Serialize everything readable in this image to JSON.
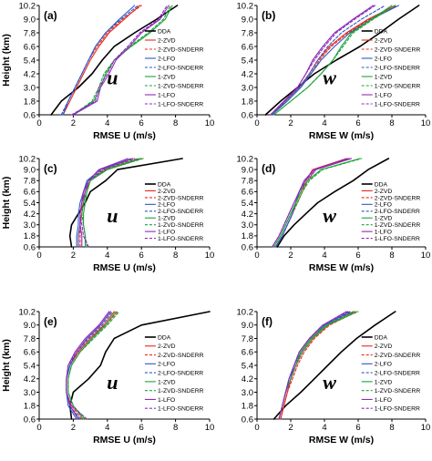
{
  "series_style": [
    {
      "name": "DDA",
      "color": "#000000",
      "dash": false,
      "width": 1.6
    },
    {
      "name": "2-ZVD",
      "color": "#e8291c",
      "dash": false,
      "width": 1.1
    },
    {
      "name": "2-ZVD-SNDERR",
      "color": "#e8291c",
      "dash": true,
      "width": 1.1
    },
    {
      "name": "2-LFO",
      "color": "#2a59c9",
      "dash": false,
      "width": 1.1
    },
    {
      "name": "2-LFO-SNDERR",
      "color": "#2a59c9",
      "dash": true,
      "width": 1.1
    },
    {
      "name": "1-ZVD",
      "color": "#1aa33b",
      "dash": false,
      "width": 1.1
    },
    {
      "name": "1-ZVD-SNDERR",
      "color": "#1aa33b",
      "dash": true,
      "width": 1.1
    },
    {
      "name": "1-LFO",
      "color": "#8f2ab8",
      "dash": false,
      "width": 1.1
    },
    {
      "name": "1-LFO-SNDERR",
      "color": "#8f2ab8",
      "dash": true,
      "width": 1.1
    }
  ],
  "y_ticks": [
    "0.6",
    "1.8",
    "3.0",
    "4.2",
    "5.4",
    "6.6",
    "7.8",
    "9.0",
    "10.2"
  ],
  "chart_data": [
    {
      "type": "line",
      "panel": "(a)",
      "variable": "u",
      "xlabel": "RMSE U (m/s)",
      "ylabel": "Height (km)",
      "xlim": [
        0,
        10
      ],
      "ylim": [
        0.6,
        10.2
      ],
      "x_ticks": [
        "0",
        "2",
        "4",
        "6",
        "8",
        "10"
      ],
      "legend": [
        "DDA",
        "2-ZVD",
        "2-ZVD-SNDERR",
        "2-LFO",
        "2-LFO-SNDERR",
        "1-ZVD",
        "1-ZVD-SNDERR",
        "1-LFO",
        "1-LFO-SNDERR"
      ],
      "legend_position": "right",
      "y": [
        0.6,
        1.8,
        3.0,
        4.2,
        5.4,
        6.6,
        7.8,
        9.0,
        10.2
      ],
      "series": [
        {
          "name": "DDA",
          "values": [
            0.7,
            1.3,
            2.3,
            3.1,
            3.7,
            4.4,
            5.6,
            6.9,
            8.1
          ]
        },
        {
          "name": "2-ZVD",
          "values": [
            1.4,
            1.8,
            2.2,
            2.6,
            3.0,
            3.5,
            4.1,
            5.0,
            5.9
          ]
        },
        {
          "name": "2-ZVD-SNDERR",
          "values": [
            1.3,
            1.7,
            2.1,
            2.5,
            2.9,
            3.4,
            4.0,
            4.9,
            6.0
          ]
        },
        {
          "name": "2-LFO",
          "values": [
            1.4,
            1.7,
            2.1,
            2.5,
            2.9,
            3.3,
            3.9,
            4.7,
            5.6
          ]
        },
        {
          "name": "2-LFO-SNDERR",
          "values": [
            1.3,
            1.7,
            2.1,
            2.5,
            2.9,
            3.3,
            3.9,
            4.8,
            5.8
          ]
        },
        {
          "name": "1-ZVD",
          "values": [
            2.0,
            3.2,
            3.6,
            3.9,
            4.4,
            5.4,
            6.5,
            7.4,
            7.8
          ]
        },
        {
          "name": "1-ZVD-SNDERR",
          "values": [
            2.0,
            3.1,
            3.5,
            3.8,
            4.4,
            5.3,
            6.4,
            7.3,
            7.7
          ]
        },
        {
          "name": "1-LFO",
          "values": [
            2.0,
            3.4,
            3.6,
            4.1,
            4.5,
            5.3,
            6.0,
            7.1,
            7.6
          ]
        },
        {
          "name": "1-LFO-SNDERR",
          "values": [
            1.9,
            3.3,
            3.5,
            4.0,
            4.4,
            5.2,
            5.9,
            7.0,
            7.5
          ]
        }
      ]
    },
    {
      "type": "line",
      "panel": "(b)",
      "variable": "w",
      "xlabel": "RMSE W (m/s)",
      "ylabel": "",
      "xlim": [
        0,
        10
      ],
      "ylim": [
        0.6,
        10.2
      ],
      "x_ticks": [
        "0",
        "2",
        "4",
        "6",
        "8",
        "10"
      ],
      "legend": [
        "DDA",
        "2-ZVD",
        "2-ZVD-SNDERR",
        "2-LFO",
        "2-LFO-SNDERR",
        "1-ZVD",
        "1-ZVD-SNDERR",
        "1-LFO",
        "1-LFO-SNDERR"
      ],
      "legend_position": "right",
      "y": [
        0.6,
        1.8,
        3.0,
        4.2,
        5.4,
        6.6,
        7.8,
        9.0,
        10.2
      ],
      "series": [
        {
          "name": "DDA",
          "values": [
            0.5,
            1.4,
            2.4,
            3.4,
            4.7,
            6.1,
            7.3,
            8.4,
            9.6
          ]
        },
        {
          "name": "2-ZVD",
          "values": [
            0.9,
            1.7,
            2.5,
            3.1,
            3.6,
            4.3,
            5.3,
            6.6,
            8.2
          ]
        },
        {
          "name": "2-ZVD-SNDERR",
          "values": [
            0.9,
            1.6,
            2.5,
            3.2,
            3.7,
            4.4,
            5.4,
            6.7,
            8.3
          ]
        },
        {
          "name": "2-LFO",
          "values": [
            0.9,
            1.8,
            2.6,
            3.2,
            3.8,
            4.6,
            5.5,
            6.8,
            8.4
          ]
        },
        {
          "name": "2-LFO-SNDERR",
          "values": [
            0.9,
            1.7,
            2.5,
            3.1,
            3.6,
            4.2,
            5.0,
            6.2,
            7.6
          ]
        },
        {
          "name": "1-ZVD",
          "values": [
            1.0,
            2.0,
            3.0,
            3.8,
            4.5,
            5.0,
            5.6,
            6.8,
            8.0
          ]
        },
        {
          "name": "1-ZVD-SNDERR",
          "values": [
            1.0,
            2.0,
            3.0,
            3.8,
            4.5,
            5.1,
            5.7,
            6.9,
            8.2
          ]
        },
        {
          "name": "1-LFO",
          "values": [
            0.8,
            1.6,
            2.4,
            2.9,
            3.3,
            3.9,
            4.6,
            5.7,
            6.9
          ]
        },
        {
          "name": "1-LFO-SNDERR",
          "values": [
            0.8,
            1.6,
            2.4,
            2.9,
            3.4,
            4.0,
            4.7,
            5.8,
            7.0
          ]
        }
      ]
    },
    {
      "type": "line",
      "panel": "(c)",
      "variable": "u",
      "xlabel": "RMSE U (m/s)",
      "ylabel": "Height (km)",
      "xlim": [
        0,
        10
      ],
      "ylim": [
        0.6,
        10.2
      ],
      "x_ticks": [
        "0",
        "2",
        "4",
        "6",
        "8",
        "10"
      ],
      "legend": [
        "DDA",
        "2-ZVD",
        "2-ZVD-SNDERR",
        "2-LFO",
        "2-LFO-SNDERR",
        "1-ZVD",
        "1-ZVD-SNDERR",
        "1-LFO",
        "1-LFO-SNDERR"
      ],
      "legend_position": "right",
      "y": [
        0.6,
        1.8,
        3.0,
        4.2,
        5.4,
        6.6,
        7.8,
        9.0,
        10.2
      ],
      "series": [
        {
          "name": "DDA",
          "values": [
            1.9,
            1.8,
            1.9,
            2.3,
            2.7,
            3.0,
            3.9,
            4.6,
            8.4
          ]
        },
        {
          "name": "2-ZVD",
          "values": [
            2.3,
            2.3,
            2.4,
            2.5,
            2.6,
            2.7,
            3.0,
            4.0,
            6.0
          ]
        },
        {
          "name": "2-ZVD-SNDERR",
          "values": [
            2.4,
            2.4,
            2.4,
            2.5,
            2.5,
            2.6,
            2.9,
            3.8,
            5.6
          ]
        },
        {
          "name": "2-LFO",
          "values": [
            2.2,
            2.2,
            2.3,
            2.3,
            2.4,
            2.6,
            2.8,
            3.6,
            5.4
          ]
        },
        {
          "name": "2-LFO-SNDERR",
          "values": [
            2.3,
            2.3,
            2.4,
            2.4,
            2.5,
            2.7,
            2.9,
            3.9,
            5.8
          ]
        },
        {
          "name": "1-ZVD",
          "values": [
            2.7,
            2.7,
            2.6,
            2.6,
            2.7,
            2.8,
            3.0,
            3.9,
            5.9
          ]
        },
        {
          "name": "1-ZVD-SNDERR",
          "values": [
            2.8,
            2.7,
            2.6,
            2.5,
            2.6,
            2.8,
            3.0,
            4.0,
            6.1
          ]
        },
        {
          "name": "1-LFO",
          "values": [
            2.5,
            2.5,
            2.4,
            2.4,
            2.5,
            2.6,
            2.9,
            3.5,
            5.2
          ]
        },
        {
          "name": "1-LFO-SNDERR",
          "values": [
            2.9,
            2.6,
            2.5,
            2.4,
            2.5,
            2.7,
            2.9,
            3.7,
            5.5
          ]
        }
      ]
    },
    {
      "type": "line",
      "panel": "(d)",
      "variable": "w",
      "xlabel": "RMSE W (m/s)",
      "ylabel": "",
      "xlim": [
        0,
        10
      ],
      "ylim": [
        0.6,
        10.2
      ],
      "x_ticks": [
        "0",
        "2",
        "4",
        "6",
        "8",
        "10"
      ],
      "legend": [
        "DDA",
        "2-ZVD",
        "2-ZVD-SNDERR",
        "2-LFO",
        "2-LFO-SNDERR",
        "1-ZVD",
        "1-ZVD-SNDERR",
        "1-LFO",
        "1-LFO-SNDERR"
      ],
      "legend_position": "right",
      "y": [
        0.6,
        1.8,
        3.0,
        4.2,
        5.4,
        6.6,
        7.8,
        9.0,
        10.2
      ],
      "series": [
        {
          "name": "DDA",
          "values": [
            1.2,
            1.6,
            2.2,
            2.9,
            3.6,
            4.6,
            5.7,
            6.6,
            7.8
          ]
        },
        {
          "name": "2-ZVD",
          "values": [
            1.1,
            1.5,
            1.8,
            2.1,
            2.3,
            2.6,
            2.9,
            3.3,
            5.3
          ]
        },
        {
          "name": "2-ZVD-SNDERR",
          "values": [
            1.1,
            1.5,
            1.8,
            2.1,
            2.4,
            2.7,
            3.0,
            3.5,
            5.6
          ]
        },
        {
          "name": "2-LFO",
          "values": [
            1.1,
            1.5,
            1.8,
            2.1,
            2.3,
            2.5,
            2.8,
            3.4,
            5.4
          ]
        },
        {
          "name": "2-LFO-SNDERR",
          "values": [
            1.1,
            1.5,
            1.8,
            2.1,
            2.3,
            2.5,
            2.8,
            3.4,
            5.5
          ]
        },
        {
          "name": "1-ZVD",
          "values": [
            1.0,
            1.4,
            1.7,
            2.0,
            2.3,
            2.6,
            3.0,
            3.8,
            6.1
          ]
        },
        {
          "name": "1-ZVD-SNDERR",
          "values": [
            1.0,
            1.4,
            1.7,
            2.0,
            2.4,
            2.7,
            3.1,
            3.9,
            6.2
          ]
        },
        {
          "name": "1-LFO",
          "values": [
            0.9,
            1.3,
            1.6,
            1.9,
            2.2,
            2.5,
            2.8,
            3.4,
            5.4
          ]
        },
        {
          "name": "1-LFO-SNDERR",
          "values": [
            0.9,
            1.3,
            1.6,
            1.9,
            2.2,
            2.5,
            2.9,
            3.5,
            5.6
          ]
        }
      ]
    },
    {
      "type": "line",
      "panel": "(e)",
      "variable": "u",
      "xlabel": "RMSE U (m/s)",
      "ylabel": "Height (km)",
      "xlim": [
        0,
        10
      ],
      "ylim": [
        0.6,
        10.2
      ],
      "x_ticks": [
        "0",
        "2",
        "4",
        "6",
        "8",
        "10"
      ],
      "legend": [
        "DDA",
        "2-ZVD",
        "2-ZVD-SNDERR",
        "2-LFO",
        "2-LFO-SNDERR",
        "1-ZVD",
        "1-ZVD-SNDERR",
        "1-LFO",
        "1-LFO-SNDERR"
      ],
      "legend_position": "right",
      "y": [
        0.6,
        1.8,
        3.0,
        4.2,
        5.4,
        6.6,
        7.8,
        9.0,
        10.2
      ],
      "series": [
        {
          "name": "DDA",
          "values": [
            1.9,
            1.8,
            2.0,
            2.9,
            3.6,
            3.9,
            4.4,
            6.0,
            10.0
          ]
        },
        {
          "name": "2-ZVD",
          "values": [
            2.3,
            1.8,
            1.6,
            1.6,
            1.8,
            2.3,
            3.0,
            3.8,
            4.4
          ]
        },
        {
          "name": "2-ZVD-SNDERR",
          "values": [
            2.5,
            1.9,
            1.6,
            1.6,
            1.8,
            2.3,
            3.0,
            3.9,
            4.6
          ]
        },
        {
          "name": "2-LFO",
          "values": [
            2.2,
            1.7,
            1.6,
            1.6,
            1.8,
            2.2,
            2.8,
            3.6,
            4.2
          ]
        },
        {
          "name": "2-LFO-SNDERR",
          "values": [
            2.4,
            1.8,
            1.6,
            1.6,
            1.8,
            2.2,
            2.9,
            3.7,
            4.3
          ]
        },
        {
          "name": "1-ZVD",
          "values": [
            2.6,
            2.0,
            1.7,
            1.7,
            1.9,
            2.4,
            3.1,
            3.9,
            4.5
          ]
        },
        {
          "name": "1-ZVD-SNDERR",
          "values": [
            2.7,
            2.0,
            1.7,
            1.7,
            1.9,
            2.4,
            3.2,
            4.0,
            4.7
          ]
        },
        {
          "name": "1-LFO",
          "values": [
            2.3,
            1.8,
            1.6,
            1.6,
            1.7,
            2.1,
            2.7,
            3.5,
            4.1
          ]
        },
        {
          "name": "1-LFO-SNDERR",
          "values": [
            2.8,
            1.9,
            1.6,
            1.6,
            1.7,
            2.2,
            2.8,
            3.6,
            4.2
          ]
        }
      ]
    },
    {
      "type": "line",
      "panel": "(f)",
      "variable": "w",
      "xlabel": "RMSE W (m/s)",
      "ylabel": "",
      "xlim": [
        0,
        10
      ],
      "ylim": [
        0.6,
        10.2
      ],
      "x_ticks": [
        "0",
        "2",
        "4",
        "6",
        "8",
        "10"
      ],
      "legend": [
        "DDA",
        "2-ZVD",
        "2-ZVD-SNDERR",
        "2-LFO",
        "2-LFO-SNDERR",
        "1-ZVD",
        "1-ZVD-SNDERR",
        "1-LFO",
        "1-LFO-SNDERR"
      ],
      "legend_position": "right",
      "y": [
        0.6,
        1.8,
        3.0,
        4.2,
        5.4,
        6.6,
        7.8,
        9.0,
        10.2
      ],
      "series": [
        {
          "name": "DDA",
          "values": [
            1.0,
            1.7,
            2.6,
            3.4,
            4.2,
            5.0,
            5.9,
            7.0,
            8.2
          ]
        },
        {
          "name": "2-ZVD",
          "values": [
            1.4,
            1.6,
            1.8,
            2.0,
            2.3,
            2.7,
            3.3,
            4.2,
            5.7
          ]
        },
        {
          "name": "2-ZVD-SNDERR",
          "values": [
            1.4,
            1.6,
            1.8,
            2.1,
            2.4,
            2.8,
            3.4,
            4.3,
            5.9
          ]
        },
        {
          "name": "2-LFO",
          "values": [
            1.3,
            1.5,
            1.7,
            2.0,
            2.2,
            2.6,
            3.2,
            4.0,
            5.5
          ]
        },
        {
          "name": "2-LFO-SNDERR",
          "values": [
            1.3,
            1.5,
            1.7,
            2.0,
            2.3,
            2.6,
            3.2,
            4.1,
            5.6
          ]
        },
        {
          "name": "1-ZVD",
          "values": [
            1.3,
            1.5,
            1.7,
            1.9,
            2.2,
            2.6,
            3.2,
            4.1,
            5.8
          ]
        },
        {
          "name": "1-ZVD-SNDERR",
          "values": [
            1.3,
            1.5,
            1.7,
            2.0,
            2.3,
            2.7,
            3.3,
            4.2,
            6.0
          ]
        },
        {
          "name": "1-LFO",
          "values": [
            1.3,
            1.5,
            1.7,
            1.9,
            2.2,
            2.5,
            3.1,
            3.9,
            5.3
          ]
        },
        {
          "name": "1-LFO-SNDERR",
          "values": [
            1.3,
            1.5,
            1.7,
            1.9,
            2.2,
            2.5,
            3.1,
            3.9,
            5.4
          ]
        }
      ]
    }
  ]
}
